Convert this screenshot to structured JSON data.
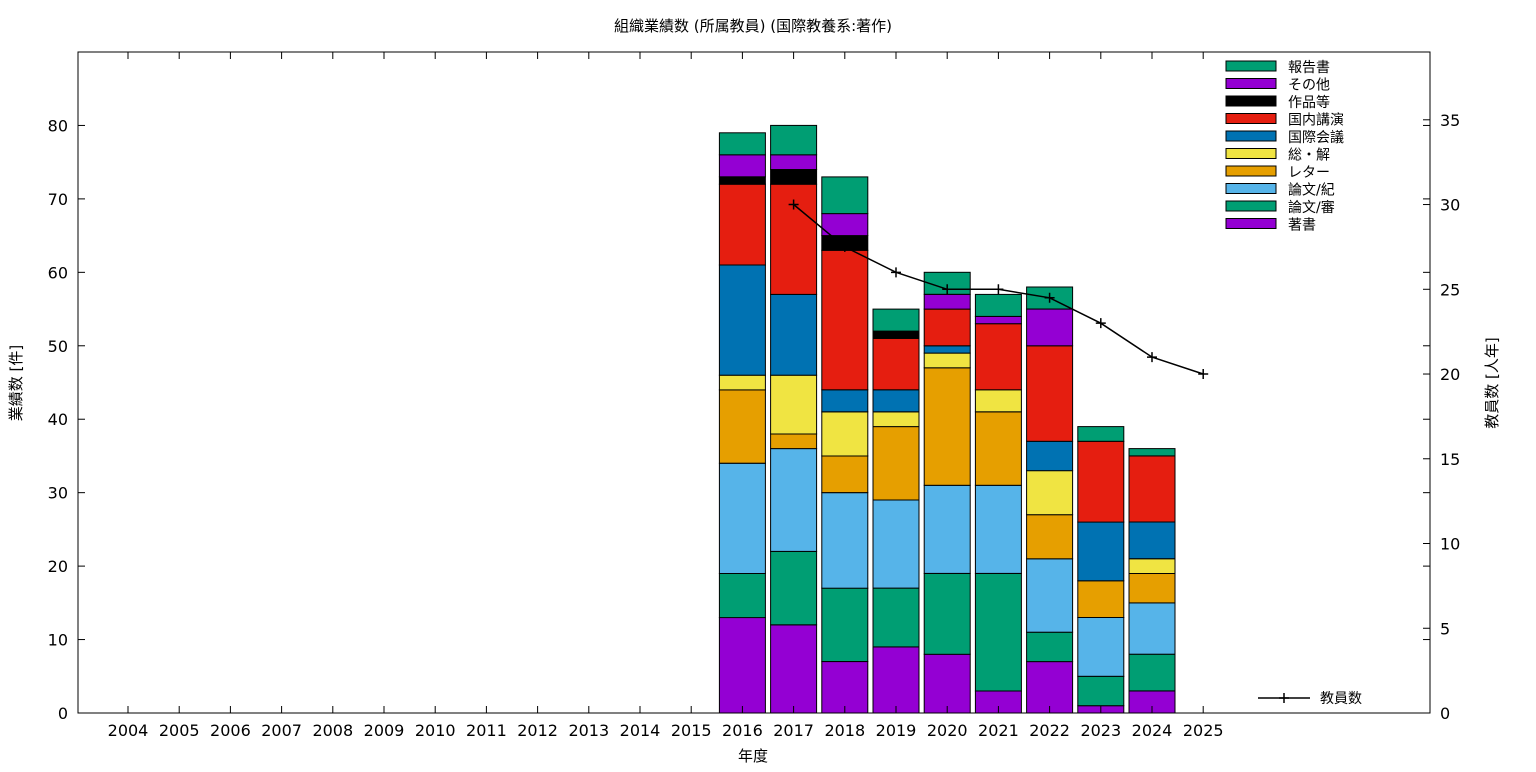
{
  "chart_data": {
    "type": "bar",
    "title": "組織業績数 (所属教員) (国際教養系:著作)",
    "xlabel": "年度",
    "ylabel": "業績数 [件]",
    "y2label": "教員数 [人年]",
    "ylim": [
      0,
      90
    ],
    "y2lim": [
      0,
      39
    ],
    "yticks": [
      0,
      10,
      20,
      30,
      40,
      50,
      60,
      70,
      80
    ],
    "y2ticks": [
      0,
      5,
      10,
      15,
      20,
      25,
      30,
      35
    ],
    "grid": false,
    "legend_position": "top-right",
    "categories": [
      "2004",
      "2005",
      "2006",
      "2007",
      "2008",
      "2009",
      "2010",
      "2011",
      "2012",
      "2013",
      "2014",
      "2015",
      "2016",
      "2017",
      "2018",
      "2019",
      "2020",
      "2021",
      "2022",
      "2023",
      "2024",
      "2025"
    ],
    "stack_order": [
      "著書",
      "論文/審",
      "論文/紀",
      "レター",
      "総・解",
      "国際会議",
      "国内講演",
      "作品等",
      "その他",
      "報告書"
    ],
    "legend_order": [
      "報告書",
      "その他",
      "作品等",
      "国内講演",
      "国際会議",
      "総・解",
      "レター",
      "論文/紀",
      "論文/審",
      "著書"
    ],
    "series": [
      {
        "name": "著書",
        "color": "#9400d3",
        "values": [
          0,
          0,
          0,
          0,
          0,
          0,
          0,
          0,
          0,
          0,
          0,
          0,
          13,
          12,
          7,
          9,
          8,
          3,
          7,
          1,
          3,
          0
        ]
      },
      {
        "name": "論文/審",
        "color": "#009e73",
        "values": [
          0,
          0,
          0,
          0,
          0,
          0,
          0,
          0,
          0,
          0,
          0,
          0,
          6,
          10,
          10,
          8,
          11,
          16,
          4,
          4,
          5,
          0
        ]
      },
      {
        "name": "論文/紀",
        "color": "#56b4e9",
        "values": [
          0,
          0,
          0,
          0,
          0,
          0,
          0,
          0,
          0,
          0,
          0,
          0,
          15,
          14,
          13,
          12,
          12,
          12,
          10,
          8,
          7,
          0
        ]
      },
      {
        "name": "レター",
        "color": "#e69f00",
        "values": [
          0,
          0,
          0,
          0,
          0,
          0,
          0,
          0,
          0,
          0,
          0,
          0,
          10,
          2,
          5,
          10,
          16,
          10,
          6,
          5,
          4,
          0
        ]
      },
      {
        "name": "総・解",
        "color": "#f0e442",
        "values": [
          0,
          0,
          0,
          0,
          0,
          0,
          0,
          0,
          0,
          0,
          0,
          0,
          2,
          8,
          6,
          2,
          2,
          3,
          6,
          0,
          2,
          0
        ]
      },
      {
        "name": "国際会議",
        "color": "#0072b2",
        "values": [
          0,
          0,
          0,
          0,
          0,
          0,
          0,
          0,
          0,
          0,
          0,
          0,
          15,
          11,
          3,
          3,
          1,
          0,
          4,
          8,
          5,
          0
        ]
      },
      {
        "name": "国内講演",
        "color": "#e51e10",
        "values": [
          0,
          0,
          0,
          0,
          0,
          0,
          0,
          0,
          0,
          0,
          0,
          0,
          11,
          15,
          19,
          7,
          5,
          9,
          13,
          11,
          9,
          0
        ]
      },
      {
        "name": "作品等",
        "color": "#000000",
        "values": [
          0,
          0,
          0,
          0,
          0,
          0,
          0,
          0,
          0,
          0,
          0,
          0,
          1,
          2,
          2,
          1,
          0,
          0,
          0,
          0,
          0,
          0
        ]
      },
      {
        "name": "その他",
        "color": "#9400d3",
        "values": [
          0,
          0,
          0,
          0,
          0,
          0,
          0,
          0,
          0,
          0,
          0,
          0,
          3,
          2,
          3,
          0,
          2,
          1,
          5,
          0,
          0,
          0
        ]
      },
      {
        "name": "報告書",
        "color": "#009e73",
        "values": [
          0,
          0,
          0,
          0,
          0,
          0,
          0,
          0,
          0,
          0,
          0,
          0,
          3,
          4,
          5,
          3,
          3,
          3,
          3,
          2,
          1,
          0
        ]
      }
    ],
    "line_series": {
      "name": "教員数",
      "color": "#000000",
      "x": [
        "2017",
        "2018",
        "2019",
        "2020",
        "2021",
        "2022",
        "2023",
        "2024",
        "2025"
      ],
      "values": [
        30,
        27.5,
        26,
        25,
        25,
        24.5,
        23,
        21,
        20
      ]
    }
  }
}
